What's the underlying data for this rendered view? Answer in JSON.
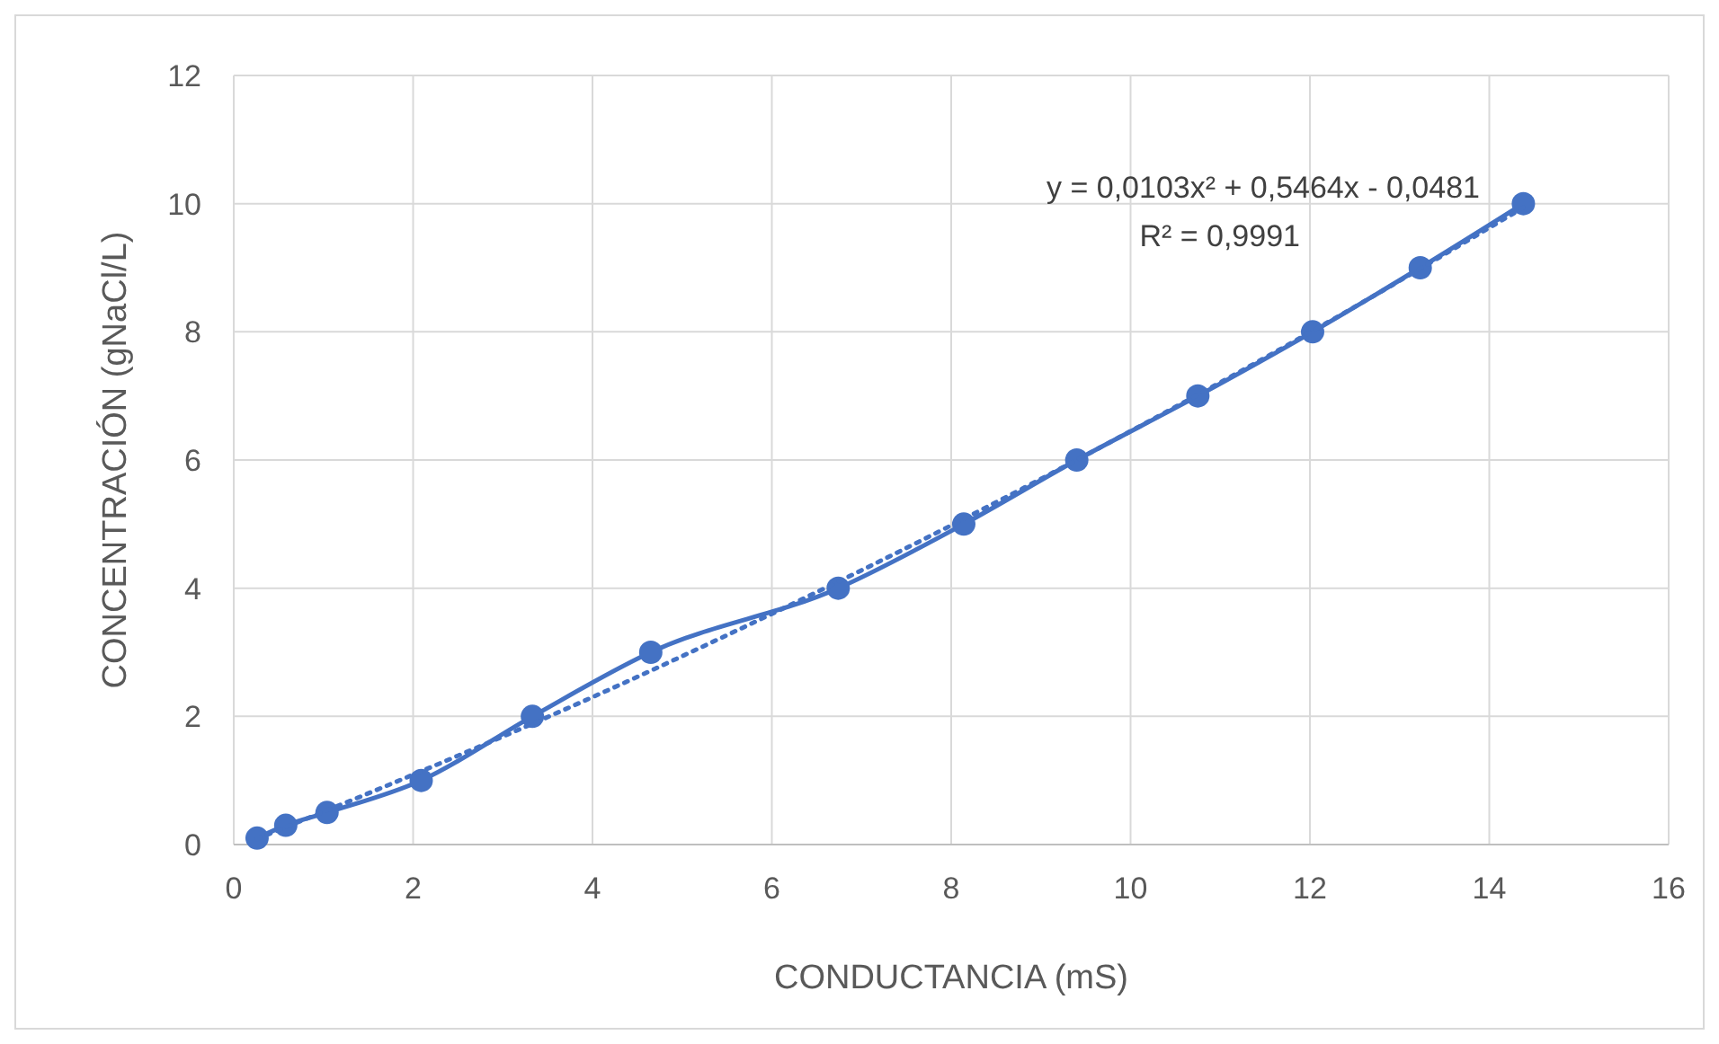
{
  "chart_data": {
    "type": "line",
    "xlabel": "CONDUCTANCIA (mS)",
    "ylabel": "CONCENTRACIÓN (gNaCl/L)",
    "xlim": [
      0,
      16
    ],
    "xticks": [
      0,
      2,
      4,
      6,
      8,
      10,
      12,
      14,
      16
    ],
    "ylim": [
      0,
      12
    ],
    "yticks": [
      0,
      2,
      4,
      6,
      8,
      10,
      12
    ],
    "grid": true,
    "series": [
      {
        "color": "#4472c4",
        "marker": "circle",
        "line_style": "solid",
        "x": [
          0.26,
          0.58,
          1.04,
          2.09,
          3.33,
          4.65,
          6.74,
          8.14,
          9.4,
          10.75,
          12.03,
          13.23,
          14.38
        ],
        "values": [
          0.1,
          0.3,
          0.5,
          1,
          2,
          3,
          4,
          5,
          6,
          7,
          8,
          9,
          10
        ]
      },
      {
        "color": "#4472c4",
        "marker": "none",
        "line_style": "dotted",
        "x": [
          0.26,
          2,
          4,
          6,
          8,
          10,
          12,
          14.38
        ],
        "values": [
          0.09,
          1.09,
          2.3,
          3.6,
          4.98,
          6.45,
          7.99,
          9.94
        ]
      }
    ],
    "annotations": [
      "y = 0,0103x² + 0,5464x - 0,0481",
      "R² = 0,9991"
    ]
  }
}
